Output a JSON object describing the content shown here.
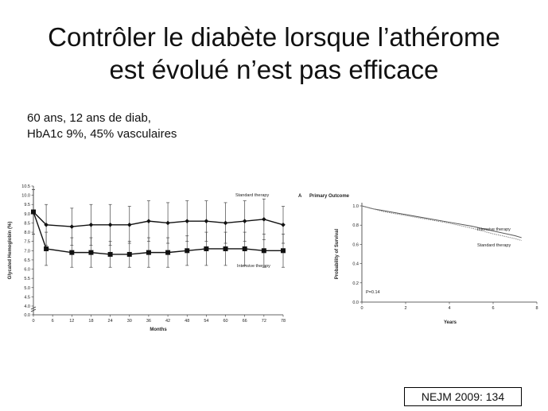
{
  "slide": {
    "title_line1": "Contrôler le diabète lorsque l’athérome",
    "title_line2": "est évolué n’est pas efficace",
    "subtitle_line1": "60 ans, 12 ans de diab,",
    "subtitle_line2": "HbA1c 9%, 45% vasculaires",
    "citation": "NEJM 2009: 134"
  },
  "chart_data": [
    {
      "type": "line",
      "xlabel": "Months",
      "ylabel": "Glycated Hemoglobin (%)",
      "xlim": [
        0,
        78
      ],
      "ylim": [
        0,
        10.5
      ],
      "x_ticks": [
        0,
        6,
        12,
        18,
        24,
        30,
        36,
        42,
        48,
        54,
        60,
        66,
        72,
        78
      ],
      "y_ticks": [
        "0.0",
        "4.0",
        "4.5",
        "5.0",
        "5.5",
        "6.0",
        "6.5",
        "7.0",
        "7.5",
        "8.0",
        "8.5",
        "9.0",
        "9.5",
        "10.0",
        "10.5"
      ],
      "y_tick_values": [
        0,
        4.0,
        4.5,
        5.0,
        5.5,
        6.0,
        6.5,
        7.0,
        7.5,
        8.0,
        8.5,
        9.0,
        9.5,
        10.0,
        10.5
      ],
      "axis_break": true,
      "series": [
        {
          "name": "Standard therapy",
          "marker": "diamond",
          "x": [
            0,
            4,
            12,
            18,
            24,
            30,
            36,
            42,
            48,
            54,
            60,
            66,
            72,
            78
          ],
          "y": [
            9.1,
            8.4,
            8.3,
            8.4,
            8.4,
            8.4,
            8.6,
            8.5,
            8.6,
            8.6,
            8.5,
            8.6,
            8.7,
            8.4
          ],
          "err": [
            1.2,
            1.1,
            1.0,
            1.1,
            1.1,
            1.0,
            1.1,
            1.1,
            1.1,
            1.1,
            1.1,
            1.1,
            1.1,
            1.0
          ]
        },
        {
          "name": "Intensive therapy",
          "marker": "square",
          "x": [
            0,
            4,
            12,
            18,
            24,
            30,
            36,
            42,
            48,
            54,
            60,
            66,
            72,
            78
          ],
          "y": [
            9.1,
            7.1,
            6.9,
            6.9,
            6.8,
            6.8,
            6.9,
            6.9,
            7.0,
            7.1,
            7.1,
            7.1,
            7.0,
            7.0
          ],
          "err": [
            1.2,
            0.9,
            0.8,
            0.8,
            0.7,
            0.7,
            0.8,
            0.8,
            0.8,
            0.9,
            0.9,
            0.9,
            0.9,
            0.9
          ]
        }
      ]
    },
    {
      "type": "line",
      "panel_label": "A",
      "title": "Primary Outcome",
      "xlabel": "Years",
      "ylabel": "Probability of Survival",
      "xlim": [
        0,
        8
      ],
      "ylim": [
        0,
        1.0
      ],
      "x_ticks": [
        "0",
        "2",
        "4",
        "6",
        "8"
      ],
      "x_tick_values": [
        0,
        2,
        4,
        6,
        8
      ],
      "y_ticks": [
        "0.0",
        "0.2",
        "0.4",
        "0.6",
        "0.8",
        "1.0"
      ],
      "y_tick_values": [
        0,
        0.2,
        0.4,
        0.6,
        0.8,
        1.0
      ],
      "annotation": "P=0.14",
      "series": [
        {
          "name": "Intensive therapy",
          "x": [
            0,
            0.5,
            1,
            2,
            3,
            4,
            5,
            6,
            7,
            7.3
          ],
          "y": [
            1.0,
            0.97,
            0.95,
            0.91,
            0.87,
            0.83,
            0.79,
            0.74,
            0.69,
            0.67
          ]
        },
        {
          "name": "Standard therapy",
          "x": [
            0,
            0.5,
            1,
            2,
            3,
            4,
            5,
            6,
            7,
            7.3
          ],
          "y": [
            1.0,
            0.97,
            0.94,
            0.9,
            0.86,
            0.82,
            0.77,
            0.71,
            0.66,
            0.64
          ]
        }
      ]
    }
  ]
}
